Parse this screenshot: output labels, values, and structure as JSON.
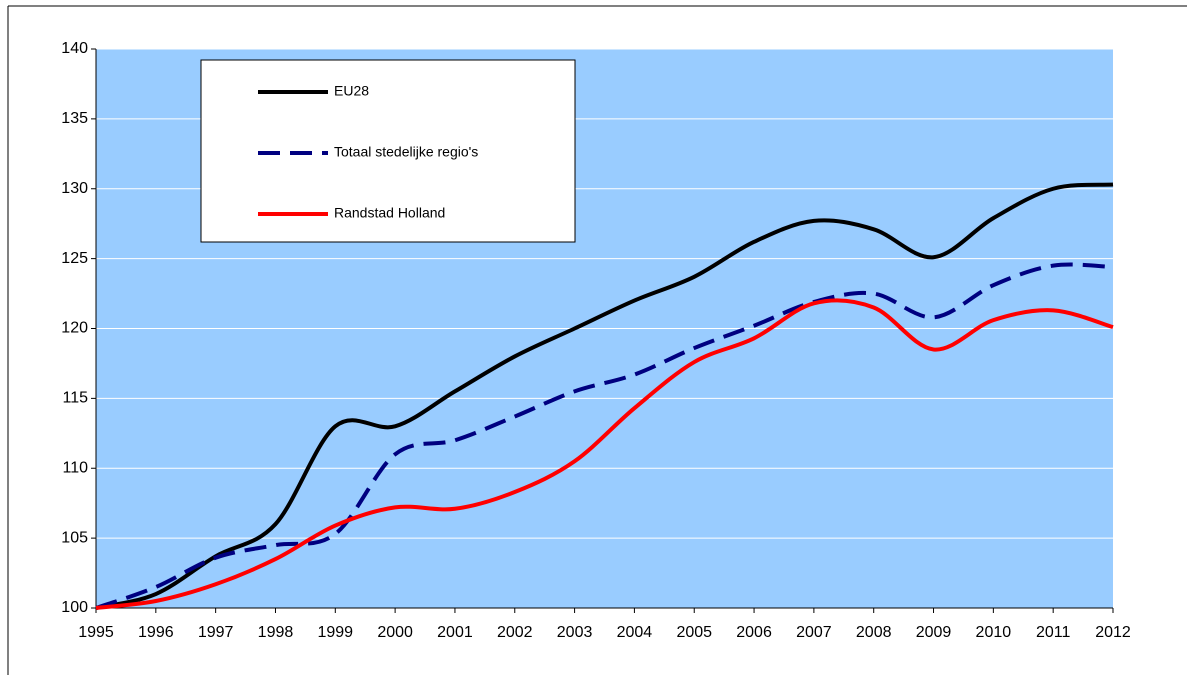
{
  "chart_data": {
    "type": "line",
    "x": [
      1995,
      1996,
      1997,
      1998,
      1999,
      2000,
      2001,
      2002,
      2003,
      2004,
      2005,
      2006,
      2007,
      2008,
      2009,
      2010,
      2011,
      2012
    ],
    "series": [
      {
        "name": "EU28",
        "color": "#000000",
        "dash": false,
        "values": [
          100,
          101,
          103.7,
          106,
          113,
          113,
          115.5,
          118,
          120,
          122,
          123.7,
          126.2,
          127.7,
          127.1,
          125.1,
          127.9,
          130,
          130.3
        ]
      },
      {
        "name": "Totaal stedelijke regio's",
        "color": "#000080",
        "dash": true,
        "values": [
          100,
          101.5,
          103.6,
          104.5,
          105.3,
          111,
          112,
          113.7,
          115.5,
          116.7,
          118.6,
          120.2,
          121.9,
          122.5,
          120.8,
          123.1,
          124.5,
          124.4
        ]
      },
      {
        "name": "Randstad Holland",
        "color": "#ff0000",
        "dash": false,
        "values": [
          100,
          100.5,
          101.7,
          103.5,
          105.9,
          107.2,
          107.1,
          108.3,
          110.5,
          114.3,
          117.6,
          119.3,
          121.8,
          121.5,
          118.5,
          120.6,
          121.3,
          120.1
        ]
      }
    ],
    "xlim": [
      1995,
      2012
    ],
    "xticks": [
      1995,
      1996,
      1997,
      1998,
      1999,
      2000,
      2001,
      2002,
      2003,
      2004,
      2005,
      2006,
      2007,
      2008,
      2009,
      2010,
      2011,
      2012
    ],
    "ylim": [
      100,
      140
    ],
    "yticks": [
      100,
      105,
      110,
      115,
      120,
      125,
      130,
      135,
      140
    ],
    "grid": true,
    "plot_background": "#99ccff",
    "legend": "upper left"
  }
}
